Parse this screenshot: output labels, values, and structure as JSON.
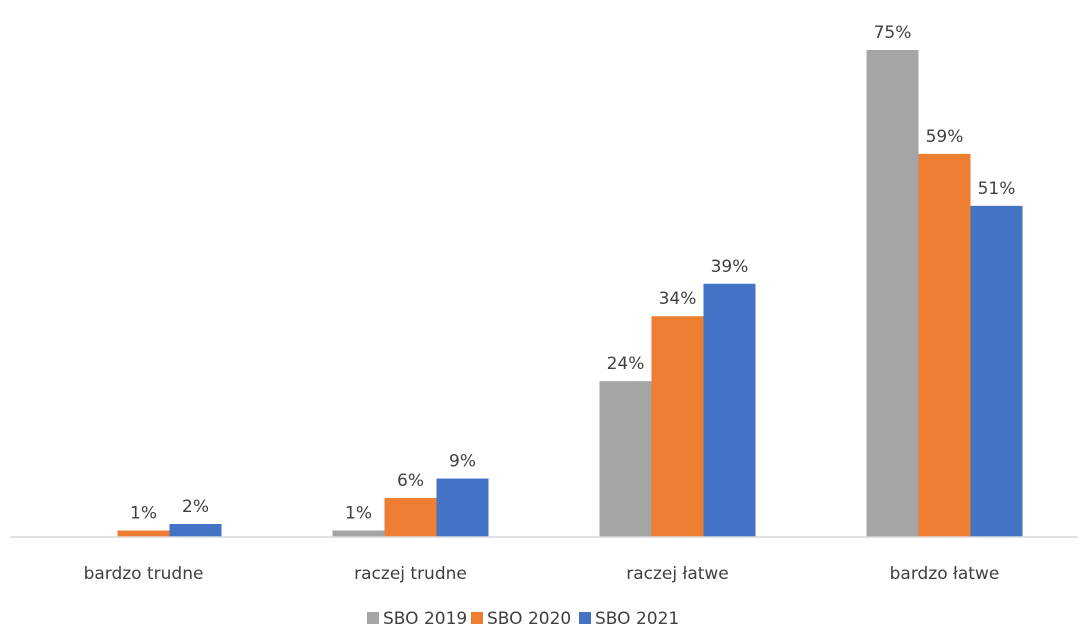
{
  "chart_data": {
    "type": "bar",
    "categories": [
      "bardzo trudne",
      "raczej trudne",
      "raczej łatwe",
      "bardzo łatwe"
    ],
    "series": [
      {
        "name": "SBO 2019",
        "color": "#A5A5A5",
        "values": [
          null,
          1,
          24,
          75
        ],
        "labels": [
          "",
          "1%",
          "24%",
          "75%"
        ]
      },
      {
        "name": "SBO 2020",
        "color": "#ED7D31",
        "values": [
          1,
          6,
          34,
          59
        ],
        "labels": [
          "1%",
          "6%",
          "34%",
          "59%"
        ]
      },
      {
        "name": "SBO 2021",
        "color": "#4472C4",
        "values": [
          2,
          9,
          39,
          51
        ],
        "labels": [
          "2%",
          "9%",
          "39%",
          "51%"
        ]
      }
    ],
    "ylim": [
      0,
      76
    ],
    "grid": false,
    "legend": "bottom-center"
  }
}
